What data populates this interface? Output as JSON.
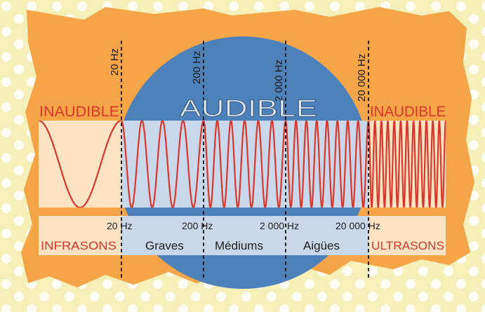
{
  "header": {
    "audible": "AUDIBLE",
    "inaudible_left": "INAUDIBLE",
    "inaudible_right": "INAUDIBLE"
  },
  "markers": [
    {
      "label": "20 Hz"
    },
    {
      "label": "200 Hz"
    },
    {
      "label": "2 000 Hz"
    },
    {
      "label": "20 000 Hz"
    }
  ],
  "bottom_labels": {
    "hz_20": "20 Hz",
    "hz_200": "200 Hz",
    "hz_2000": "2 000 Hz",
    "hz_20000": "20 000 Hz"
  },
  "bands": {
    "infrasons": "INFRASONS",
    "graves": "Graves",
    "mediums": "Médiums",
    "aigues": "Aigües",
    "ultrasons": "ULTRASONS"
  },
  "colors": {
    "background": "#f6efb7",
    "paper": "#f5a547",
    "circle": "#4c81b9",
    "strip_light": "#fde2c4",
    "strip_audible": "#c9d7ea",
    "wave": "#d9372b",
    "text_dark": "#1f1f1f"
  }
}
